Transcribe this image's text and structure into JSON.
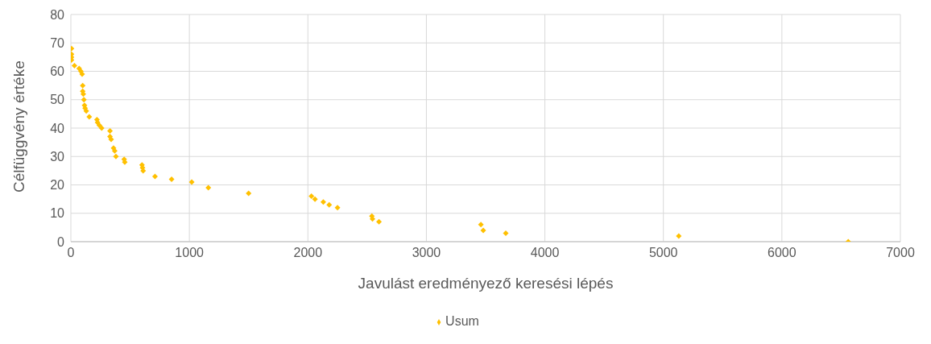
{
  "chart_data": {
    "type": "scatter",
    "xlabel": "Javulást eredményező keresési lépés",
    "ylabel": "Célfüggvény értéke",
    "x": [
      5,
      5,
      5,
      5,
      30,
      70,
      85,
      95,
      100,
      100,
      105,
      110,
      115,
      120,
      130,
      155,
      220,
      225,
      240,
      260,
      330,
      330,
      340,
      360,
      370,
      380,
      450,
      455,
      600,
      605,
      610,
      710,
      850,
      1020,
      1160,
      1500,
      2030,
      2060,
      2130,
      2180,
      2250,
      2540,
      2545,
      2600,
      3460,
      3480,
      3670,
      5130,
      6560
    ],
    "series": [
      {
        "name": "Usum",
        "color": "#ffc000",
        "values": [
          68,
          66,
          65,
          64,
          62,
          61,
          60,
          59,
          55,
          53,
          52,
          50,
          48,
          47,
          46,
          44,
          43,
          42,
          41,
          40,
          39,
          37,
          36,
          33,
          32,
          30,
          29,
          28,
          27,
          26,
          25,
          23,
          22,
          21,
          19,
          17,
          16,
          15,
          14,
          13,
          12,
          9,
          8,
          7,
          6,
          4,
          3,
          2,
          0
        ]
      }
    ],
    "xlim": [
      0,
      7000
    ],
    "xticks": [
      0,
      1000,
      2000,
      3000,
      4000,
      5000,
      6000,
      7000
    ],
    "ylim": [
      0,
      80
    ],
    "yticks": [
      0,
      10,
      20,
      30,
      40,
      50,
      60,
      70,
      80
    ],
    "grid": true,
    "legend": "bottom",
    "marker": "diamond"
  }
}
